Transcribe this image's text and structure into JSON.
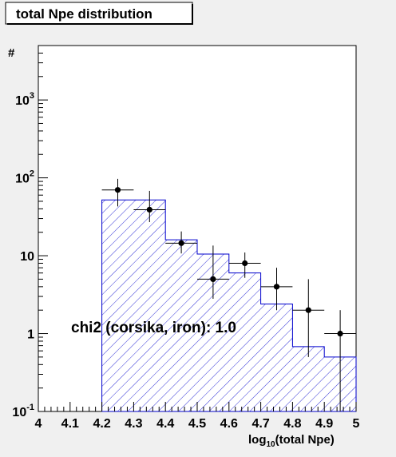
{
  "chart_data": {
    "type": "histogram",
    "title": "total Npe distribution",
    "xlabel": {
      "prefix": "log",
      "subscript": "10",
      "suffix": "(total Npe)"
    },
    "ylabel": "#",
    "xlim": [
      4,
      5
    ],
    "ylim": [
      0.1,
      5000
    ],
    "yscale": "log",
    "x_ticks": [
      "4",
      "4.1",
      "4.2",
      "4.3",
      "4.4",
      "4.5",
      "4.6",
      "4.7",
      "4.8",
      "4.9",
      "5"
    ],
    "y_ticks": [
      {
        "value": 0.1,
        "base": "10",
        "exp": "-1"
      },
      {
        "value": 1,
        "base": "1",
        "exp": ""
      },
      {
        "value": 10,
        "base": "10",
        "exp": ""
      },
      {
        "value": 100,
        "base": "10",
        "exp": "2"
      },
      {
        "value": 1000,
        "base": "10",
        "exp": "3"
      }
    ],
    "histogram": {
      "bin_edges": [
        4.2,
        4.3,
        4.4,
        4.5,
        4.6,
        4.7,
        4.8,
        4.9,
        5.0
      ],
      "values": [
        52,
        52,
        16,
        10.5,
        6,
        2.4,
        0.68,
        0.5
      ],
      "fill": "hatched",
      "color": "#0000cc"
    },
    "points": {
      "x": [
        4.25,
        4.35,
        4.45,
        4.55,
        4.65,
        4.75,
        4.85,
        4.95
      ],
      "y": [
        70,
        39,
        14.5,
        5,
        8,
        4,
        2,
        1
      ],
      "yerr_low": [
        27,
        12,
        3.8,
        2.2,
        2.8,
        2,
        1.5,
        1
      ],
      "yerr_high": [
        27,
        29,
        6,
        8.5,
        3,
        3,
        3,
        1
      ],
      "xerr": 0.05,
      "color": "#000000"
    },
    "annotation": "chi2 (corsika, iron): 1.0"
  }
}
